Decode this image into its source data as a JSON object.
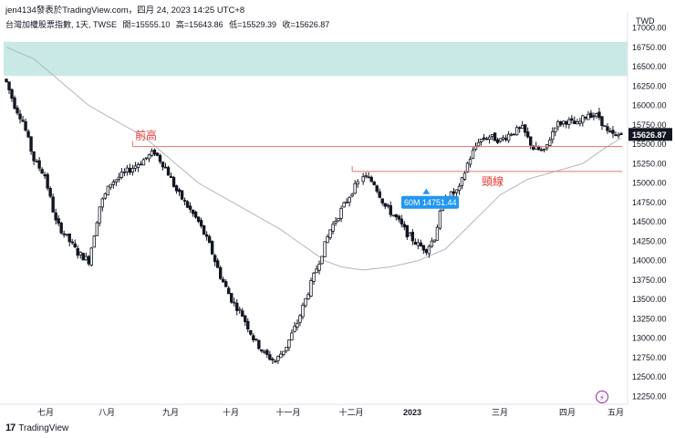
{
  "header": {
    "publish_line": "jen4134發表於TradingView.com，四月 24, 2023 14:25 UTC+8",
    "symbol": "台灣加權股票指數, 1天, TWSE",
    "open_label": "開=15555.10",
    "high_label": "高=15643.86",
    "low_label": "低=15529.39",
    "close_label": "收=15626.87"
  },
  "footer": {
    "logo_text": "TradingView",
    "logo_mark": "17"
  },
  "event_icon": "lightning-icon",
  "colors": {
    "up": "#ffffff",
    "down": "#131722",
    "candle_border": "#131722",
    "ma": "#b2b5be",
    "zone": "#b2dfdb",
    "level_line": "#e57373",
    "annotation": "#e53935",
    "callout": "#2196f3",
    "price_tag": "#131722"
  },
  "chart_data": {
    "type": "candlestick",
    "currency": "TWD",
    "ylim": [
      12250,
      17000
    ],
    "y_ticks": [
      "17000.00",
      "16750.00",
      "16500.00",
      "16250.00",
      "16000.00",
      "15750.00",
      "15500.00",
      "15250.00",
      "15000.00",
      "14750.00",
      "14500.00",
      "14250.00",
      "14000.00",
      "13750.00",
      "13500.00",
      "13250.00",
      "13000.00",
      "12750.00",
      "12500.00",
      "12250.00"
    ],
    "x_ticks": [
      "七月",
      "八月",
      "九月",
      "十月",
      "十一月",
      "十二月",
      "2023",
      "三月",
      "四月",
      "五月"
    ],
    "last_price": "15626.87",
    "series": [
      {
        "type": "candles",
        "key_points": [
          [
            0,
            16300
          ],
          [
            3,
            16000
          ],
          [
            6,
            15800
          ],
          [
            10,
            15300
          ],
          [
            14,
            15100
          ],
          [
            18,
            14500
          ],
          [
            22,
            14300
          ],
          [
            26,
            14100
          ],
          [
            30,
            14000
          ],
          [
            34,
            14700
          ],
          [
            38,
            15000
          ],
          [
            42,
            15100
          ],
          [
            46,
            15200
          ],
          [
            50,
            15300
          ],
          [
            54,
            15400
          ],
          [
            58,
            15200
          ],
          [
            62,
            14900
          ],
          [
            66,
            14700
          ],
          [
            70,
            14500
          ],
          [
            74,
            14200
          ],
          [
            78,
            13800
          ],
          [
            82,
            13500
          ],
          [
            86,
            13300
          ],
          [
            90,
            13000
          ],
          [
            94,
            12800
          ],
          [
            98,
            12700
          ],
          [
            102,
            12900
          ],
          [
            106,
            13200
          ],
          [
            110,
            13600
          ],
          [
            114,
            14000
          ],
          [
            118,
            14400
          ],
          [
            122,
            14650
          ],
          [
            126,
            14900
          ],
          [
            130,
            15100
          ],
          [
            134,
            15000
          ],
          [
            138,
            14700
          ],
          [
            142,
            14550
          ],
          [
            146,
            14350
          ],
          [
            150,
            14200
          ],
          [
            153,
            14150
          ],
          [
            156,
            14300
          ],
          [
            159,
            14750
          ],
          [
            162,
            14850
          ],
          [
            165,
            14920
          ],
          [
            168,
            15250
          ],
          [
            172,
            15550
          ],
          [
            176,
            15600
          ],
          [
            180,
            15550
          ],
          [
            184,
            15650
          ],
          [
            188,
            15700
          ],
          [
            192,
            15450
          ],
          [
            196,
            15400
          ],
          [
            200,
            15750
          ],
          [
            204,
            15800
          ],
          [
            208,
            15750
          ],
          [
            212,
            15900
          ],
          [
            216,
            15850
          ],
          [
            219,
            15650
          ],
          [
            222,
            15600
          ],
          [
            224,
            15627
          ]
        ]
      },
      {
        "type": "moving_average",
        "points": [
          [
            0,
            16750
          ],
          [
            10,
            16600
          ],
          [
            20,
            16300
          ],
          [
            30,
            16000
          ],
          [
            40,
            15800
          ],
          [
            50,
            15600
          ],
          [
            60,
            15300
          ],
          [
            70,
            15000
          ],
          [
            80,
            14800
          ],
          [
            90,
            14600
          ],
          [
            100,
            14400
          ],
          [
            110,
            14150
          ],
          [
            116,
            14000
          ],
          [
            122,
            13920
          ],
          [
            130,
            13880
          ],
          [
            140,
            13920
          ],
          [
            150,
            14000
          ],
          [
            160,
            14150
          ],
          [
            170,
            14500
          ],
          [
            180,
            14850
          ],
          [
            190,
            15050
          ],
          [
            200,
            15150
          ],
          [
            210,
            15250
          ],
          [
            218,
            15450
          ],
          [
            224,
            15580
          ]
        ]
      }
    ],
    "zone": {
      "from": 16380,
      "to": 16820
    },
    "levels": [
      {
        "value": 15470,
        "label": "前高",
        "from_index": 46
      },
      {
        "value": 15150,
        "label": "頸線",
        "from_index": 126
      }
    ],
    "callout": {
      "text": "60M 14751.44",
      "value": 14751.44,
      "index": 153
    }
  }
}
